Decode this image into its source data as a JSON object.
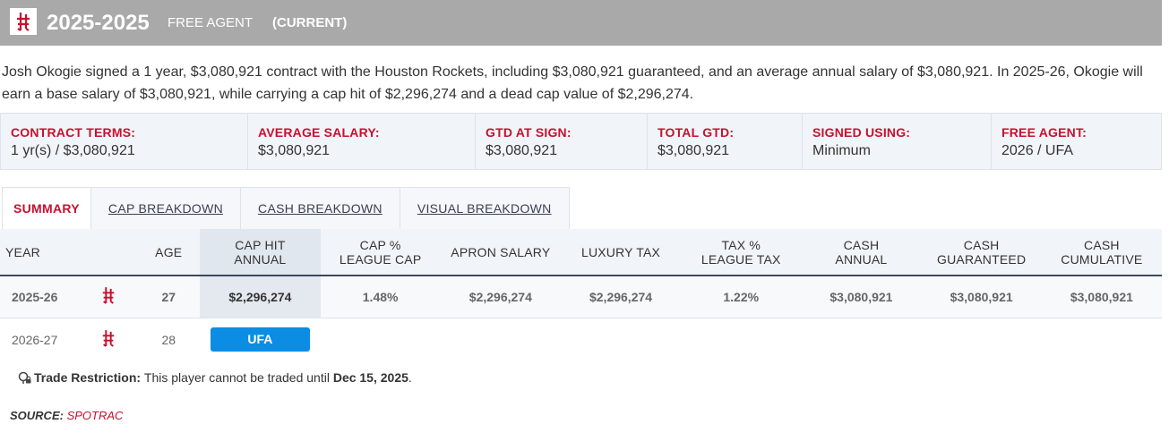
{
  "header": {
    "years": "2025-2025",
    "status": "FREE AGENT",
    "current": "(CURRENT)"
  },
  "summary": "Josh Okogie signed a 1 year, $3,080,921 contract with the Houston Rockets, including $3,080,921 guaranteed, and an average annual salary of $3,080,921. In 2025-26, Okogie will earn a base salary of $3,080,921, while carrying a cap hit of $2,296,274 and a dead cap value of $2,296,274.",
  "terms": [
    {
      "label": "CONTRACT TERMS:",
      "value": "1 yr(s) / $3,080,921"
    },
    {
      "label": "AVERAGE SALARY:",
      "value": "$3,080,921"
    },
    {
      "label": "GTD AT SIGN:",
      "value": "$3,080,921"
    },
    {
      "label": "TOTAL GTD:",
      "value": "$3,080,921"
    },
    {
      "label": "SIGNED USING:",
      "value": "Minimum"
    },
    {
      "label": "FREE AGENT:",
      "value": "2026 / UFA"
    }
  ],
  "tabs": [
    "SUMMARY",
    "CAP BREAKDOWN",
    "CASH BREAKDOWN",
    "VISUAL BREAKDOWN"
  ],
  "columns": {
    "year": "YEAR",
    "age": "AGE",
    "cap_hit_1": "CAP HIT",
    "cap_hit_2": "ANNUAL",
    "cap_pct_1": "CAP %",
    "cap_pct_2": "LEAGUE CAP",
    "apron": "APRON SALARY",
    "lux": "LUXURY TAX",
    "tax_pct_1": "TAX %",
    "tax_pct_2": "LEAGUE TAX",
    "cash_annual_1": "CASH",
    "cash_annual_2": "ANNUAL",
    "cash_gtd_1": "CASH",
    "cash_gtd_2": "GUARANTEED",
    "cash_cum_1": "CASH",
    "cash_cum_2": "CUMULATIVE"
  },
  "rows": [
    {
      "year": "2025-26",
      "age": "27",
      "cap_hit": "$2,296,274",
      "cap_pct": "1.48%",
      "apron": "$2,296,274",
      "lux": "$2,296,274",
      "tax_pct": "1.22%",
      "cash_annual": "$3,080,921",
      "cash_gtd": "$3,080,921",
      "cash_cum": "$3,080,921"
    },
    {
      "year": "2026-27",
      "age": "28",
      "status": "UFA"
    }
  ],
  "restriction": {
    "label": "Trade Restriction:",
    "text": "This player cannot be traded until",
    "date": "Dec 15, 2025",
    "end": "."
  },
  "source": {
    "label": "SOURCE:",
    "name": "SPOTRAC"
  },
  "colors": {
    "accent": "#c8102e",
    "ufa": "#0b8de4",
    "header": "#a9a9a9"
  },
  "icons": {
    "team_logo": "rockets-logo-icon",
    "restriction": "lock-pin-icon"
  }
}
